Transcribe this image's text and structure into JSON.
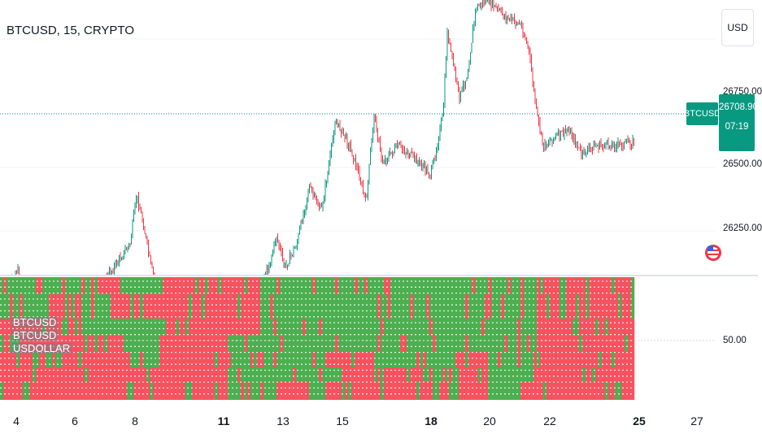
{
  "header": {
    "symbol_title": "BTCUSD, 15, CRYPTO",
    "currency_label": "USD"
  },
  "price_scale": {
    "labels": [
      "26750.00",
      "26500.00",
      "26250.00"
    ],
    "current_symbol_tag": "BTCUSD",
    "current_price": "26708.90",
    "countdown": "07:19",
    "current_price_color": "#089981"
  },
  "indicator_pane": {
    "scale_label": "50.00",
    "legend_lines": [
      "BTCUSD",
      "BTCUSD",
      "USDOLLAR"
    ],
    "colors": {
      "bull": "#4caf50",
      "bear": "#f7525f"
    }
  },
  "time_axis": {
    "labels": [
      "4",
      "6",
      "8",
      "11",
      "13",
      "15",
      "18",
      "20",
      "22",
      "25",
      "27"
    ],
    "bold_labels": [
      "11",
      "18",
      "25"
    ]
  },
  "colors": {
    "up_candle": "#089981",
    "down_candle": "#f23645",
    "grid": "#f0f3fa",
    "text": "#131722",
    "separator": "#e0e3eb"
  }
}
